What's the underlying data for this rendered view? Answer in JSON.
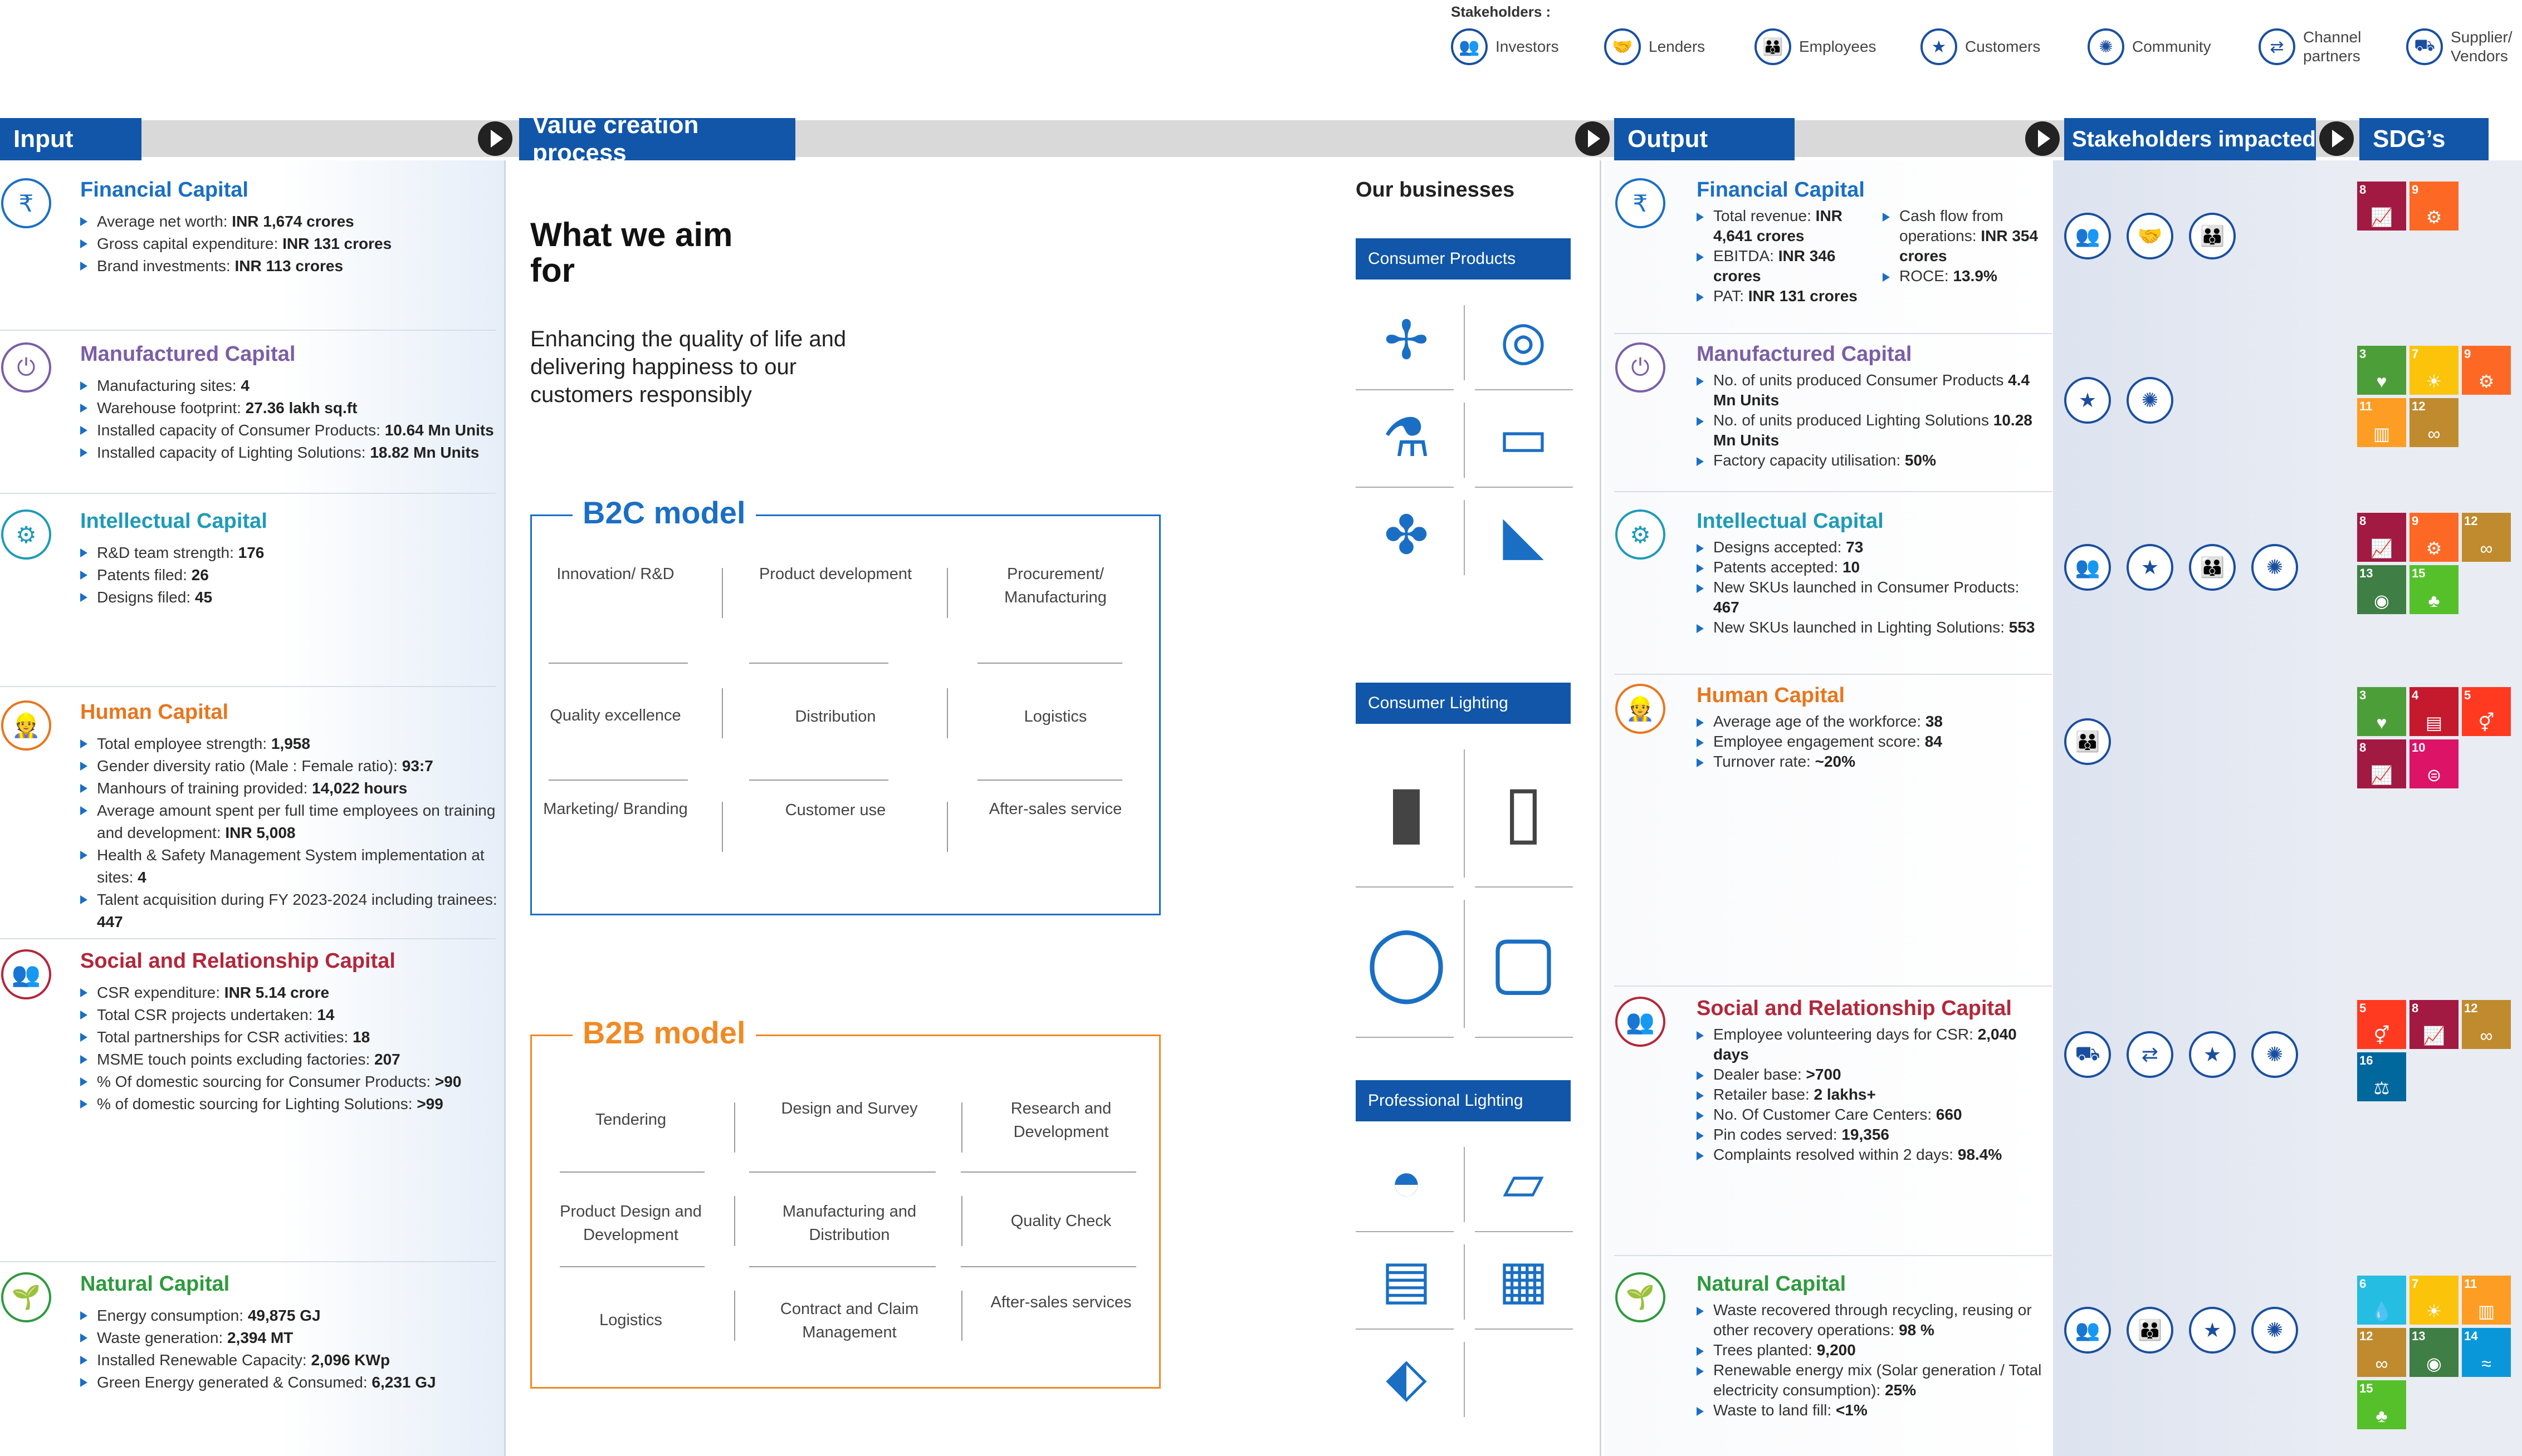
{
  "stakeholders": {
    "title": "Stakeholders :",
    "items": [
      {
        "label": "Investors",
        "icon": "investors-icon"
      },
      {
        "label": "Lenders",
        "icon": "lenders-icon"
      },
      {
        "label": "Employees",
        "icon": "employees-icon"
      },
      {
        "label": "Customers",
        "icon": "customers-icon"
      },
      {
        "label": "Community",
        "icon": "community-icon"
      },
      {
        "label": "Channel\npartners",
        "icon": "channel-partners-icon"
      },
      {
        "label": "Supplier/\nVendors",
        "icon": "suppliers-icon"
      }
    ]
  },
  "headers": {
    "input": "Input",
    "value": "Value creation process",
    "output": "Output",
    "stakeholders_impacted": "Stakeholders impacted",
    "sdg": "SDG’s"
  },
  "colors": {
    "brand_blue": "#1156a8",
    "financial": "#1a6fc4",
    "manufactured": "#7b5ea7",
    "intellectual": "#1e9bb8",
    "human": "#e8761e",
    "social": "#b3273a",
    "natural": "#2e9a3e",
    "b2c": "#1a6fc4",
    "b2b": "#f08a24"
  },
  "input": [
    {
      "title": "Financial Capital",
      "key": "financial",
      "icon": "financial-capital-icon",
      "items": [
        {
          "text": "Average net worth: ",
          "bold": "INR 1,674 crores"
        },
        {
          "text": "Gross capital expenditure: ",
          "bold": "INR 131 crores"
        },
        {
          "text": "Brand investments: ",
          "bold": "INR 113 crores"
        }
      ]
    },
    {
      "title": "Manufactured Capital",
      "key": "manufactured",
      "icon": "manufactured-capital-icon",
      "items": [
        {
          "text": "Manufacturing sites: ",
          "bold": "4"
        },
        {
          "text": "Warehouse footprint: ",
          "bold": "27.36 lakh sq.ft"
        },
        {
          "text": "Installed capacity of Consumer Products: ",
          "bold": "10.64 Mn Units"
        },
        {
          "text": "Installed capacity of Lighting Solutions: ",
          "bold": "18.82 Mn Units"
        }
      ]
    },
    {
      "title": "Intellectual Capital",
      "key": "intellectual",
      "icon": "intellectual-capital-icon",
      "items": [
        {
          "text": "R&D team strength: ",
          "bold": "176"
        },
        {
          "text": "Patents filed: ",
          "bold": "26"
        },
        {
          "text": "Designs filed: ",
          "bold": "45"
        }
      ]
    },
    {
      "title": "Human Capital",
      "key": "human",
      "icon": "human-capital-icon",
      "items": [
        {
          "text": "Total employee strength: ",
          "bold": "1,958"
        },
        {
          "text": "Gender diversity ratio (Male : Female ratio): ",
          "bold": "93:7"
        },
        {
          "text": "Manhours of training provided: ",
          "bold": "14,022 hours"
        },
        {
          "text": "Average amount spent per full time employees on training and development: ",
          "bold": "INR 5,008"
        },
        {
          "text": "Health & Safety Management System implementation at sites: ",
          "bold": "4"
        },
        {
          "text": "Talent acquisition during FY 2023-2024 including trainees: ",
          "bold": "447"
        }
      ]
    },
    {
      "title": "Social and Relationship Capital",
      "key": "social",
      "icon": "social-capital-icon",
      "items": [
        {
          "text": "CSR expenditure: ",
          "bold": "INR 5.14 crore"
        },
        {
          "text": "Total CSR projects undertaken: ",
          "bold": "14"
        },
        {
          "text": "Total partnerships for CSR activities: ",
          "bold": "18"
        },
        {
          "text": "MSME touch points excluding factories: ",
          "bold": "207"
        },
        {
          "text": "% Of domestic sourcing for Consumer Products: ",
          "bold": ">90"
        },
        {
          "text": "% of domestic sourcing for Lighting Solutions: ",
          "bold": ">99"
        }
      ]
    },
    {
      "title": "Natural Capital",
      "key": "natural",
      "icon": "natural-capital-icon",
      "items": [
        {
          "text": "Energy consumption: ",
          "bold": "49,875 GJ"
        },
        {
          "text": "Waste generation: ",
          "bold": "2,394 MT"
        },
        {
          "text": "Installed Renewable Capacity: ",
          "bold": "2,096 KWp"
        },
        {
          "text": "Green Energy generated & Consumed: ",
          "bold": "6,231 GJ"
        }
      ]
    }
  ],
  "aim": {
    "title": "What we aim for",
    "text": "Enhancing the quality of life and delivering happiness to our customers responsibly"
  },
  "b2c": {
    "title": "B2C model",
    "cells": [
      "Innovation/ R&D",
      "Product development",
      "Procurement/ Manufacturing",
      "Quality excellence",
      "Distribution",
      "Logistics",
      "Marketing/ Branding",
      "Customer use",
      "After-sales service"
    ]
  },
  "b2b": {
    "title": "B2B model",
    "cells": [
      "Tendering",
      "Design and Survey",
      "Research and Development",
      "Product Design and Development",
      "Manufacturing and Distribution",
      "Quality Check",
      "Logistics",
      "Contract and Claim Management",
      "After-sales services"
    ]
  },
  "businesses": {
    "title": "Our businesses",
    "groups": [
      {
        "label": "Consumer Products",
        "images": [
          "ceiling-fan-icon",
          "gas-stove-icon",
          "mixer-grinder-icon",
          "induction-cooktop-icon",
          "table-fan-icon",
          "steam-iron-icon"
        ]
      },
      {
        "label": "Consumer Lighting",
        "images": [
          "pendant-light-icon",
          "bollard-light-icon",
          "round-panel-light-icon",
          "square-panel-light-icon"
        ]
      },
      {
        "label": "Professional Lighting",
        "images": [
          "highbay-light-icon",
          "street-light-icon",
          "flood-light-icon",
          "solar-street-light-icon",
          "post-top-light-icon"
        ]
      }
    ]
  },
  "output": [
    {
      "title": "Financial Capital",
      "key": "financial",
      "icon": "financial-capital-icon",
      "items": [
        {
          "text": "Total revenue: ",
          "bold": "INR 4,641 crores"
        },
        {
          "text": "EBITDA: ",
          "bold": "INR 346 crores"
        },
        {
          "text": "PAT: ",
          "bold": "INR 131 crores"
        }
      ],
      "items2": [
        {
          "text": "Cash flow from operations: ",
          "bold": "INR 354 crores"
        },
        {
          "text": "ROCE: ",
          "bold": "13.9%"
        }
      ],
      "stakeholders": [
        "investors-icon",
        "lenders-icon",
        "employees-icon"
      ],
      "sdgs": [
        {
          "n": "8",
          "c": "#a21942",
          "g": "📈"
        },
        {
          "n": "9",
          "c": "#fd6925",
          "g": "⚙"
        }
      ]
    },
    {
      "title": "Manufactured Capital",
      "key": "manufactured",
      "icon": "manufactured-capital-icon",
      "items": [
        {
          "text": "No. of units produced Consumer Products ",
          "bold": "4.4 Mn Units"
        },
        {
          "text": "No. of units produced Lighting Solutions ",
          "bold": "10.28 Mn Units"
        },
        {
          "text": "Factory capacity utilisation: ",
          "bold": "50%"
        }
      ],
      "stakeholders": [
        "customers-icon",
        "community-icon"
      ],
      "sdgs": [
        {
          "n": "3",
          "c": "#4c9f38",
          "g": "♥"
        },
        {
          "n": "7",
          "c": "#fcc30b",
          "g": "☀"
        },
        {
          "n": "9",
          "c": "#fd6925",
          "g": "⚙"
        },
        {
          "n": "11",
          "c": "#fd9d24",
          "g": "▥"
        },
        {
          "n": "12",
          "c": "#bf8b2e",
          "g": "∞"
        }
      ]
    },
    {
      "title": "Intellectual Capital",
      "key": "intellectual",
      "icon": "intellectual-capital-icon",
      "items": [
        {
          "text": "Designs accepted: ",
          "bold": "73"
        },
        {
          "text": "Patents accepted: ",
          "bold": "10"
        },
        {
          "text": "New SKUs launched in Consumer Products: ",
          "bold": "467"
        },
        {
          "text": "New SKUs launched in Lighting Solutions: ",
          "bold": "553"
        }
      ],
      "stakeholders": [
        "investors-icon",
        "customers-icon",
        "employees-icon",
        "community-icon"
      ],
      "sdgs": [
        {
          "n": "8",
          "c": "#a21942",
          "g": "📈"
        },
        {
          "n": "9",
          "c": "#fd6925",
          "g": "⚙"
        },
        {
          "n": "12",
          "c": "#bf8b2e",
          "g": "∞"
        },
        {
          "n": "13",
          "c": "#3f7e44",
          "g": "◉"
        },
        {
          "n": "15",
          "c": "#56c02b",
          "g": "♣"
        }
      ]
    },
    {
      "title": "Human Capital",
      "key": "human",
      "icon": "human-capital-icon",
      "items": [
        {
          "text": "Average age of the workforce: ",
          "bold": "38"
        },
        {
          "text": "Employee engagement score: ",
          "bold": "84"
        },
        {
          "text": "Turnover rate: ",
          "bold": "~20%"
        }
      ],
      "stakeholders": [
        "employees-icon"
      ],
      "sdgs": [
        {
          "n": "3",
          "c": "#4c9f38",
          "g": "♥"
        },
        {
          "n": "4",
          "c": "#c5192d",
          "g": "▤"
        },
        {
          "n": "5",
          "c": "#ff3a21",
          "g": "⚥"
        },
        {
          "n": "8",
          "c": "#a21942",
          "g": "📈"
        },
        {
          "n": "10",
          "c": "#dd1367",
          "g": "⊜"
        }
      ]
    },
    {
      "title": "Social and Relationship Capital",
      "key": "social",
      "icon": "social-capital-icon",
      "items": [
        {
          "text": "Employee volunteering days for CSR: ",
          "bold": "2,040 days"
        },
        {
          "text": "Dealer base: ",
          "bold": ">700"
        },
        {
          "text": "Retailer base: ",
          "bold": "2 lakhs+"
        },
        {
          "text": "No. Of Customer Care Centers: ",
          "bold": "660"
        },
        {
          "text": "Pin codes served: ",
          "bold": "19,356"
        },
        {
          "text": "Complaints resolved within 2 days: ",
          "bold": "98.4%"
        }
      ],
      "stakeholders": [
        "suppliers-icon",
        "channel-partners-icon",
        "customers-icon",
        "community-icon"
      ],
      "sdgs": [
        {
          "n": "5",
          "c": "#ff3a21",
          "g": "⚥"
        },
        {
          "n": "8",
          "c": "#a21942",
          "g": "📈"
        },
        {
          "n": "12",
          "c": "#bf8b2e",
          "g": "∞"
        },
        {
          "n": "16",
          "c": "#00689d",
          "g": "⚖"
        }
      ]
    },
    {
      "title": "Natural Capital",
      "key": "natural",
      "icon": "natural-capital-icon",
      "items": [
        {
          "text": "Waste recovered through recycling, reusing or other recovery operations: ",
          "bold": "98 %"
        },
        {
          "text": "Trees planted: ",
          "bold": "9,200"
        },
        {
          "text": "Renewable energy mix (Solar generation / Total electricity consumption): ",
          "bold": "25%"
        },
        {
          "text": "Waste to land fill: ",
          "bold": "<1%"
        }
      ],
      "stakeholders": [
        "investors-icon",
        "employees-icon",
        "customers-icon",
        "community-icon"
      ],
      "sdgs": [
        {
          "n": "6",
          "c": "#26bde2",
          "g": "💧"
        },
        {
          "n": "7",
          "c": "#fcc30b",
          "g": "☀"
        },
        {
          "n": "11",
          "c": "#fd9d24",
          "g": "▥"
        },
        {
          "n": "12",
          "c": "#bf8b2e",
          "g": "∞"
        },
        {
          "n": "13",
          "c": "#3f7e44",
          "g": "◉"
        },
        {
          "n": "14",
          "c": "#0a97d9",
          "g": "≈"
        },
        {
          "n": "15",
          "c": "#56c02b",
          "g": "♣"
        }
      ]
    }
  ]
}
